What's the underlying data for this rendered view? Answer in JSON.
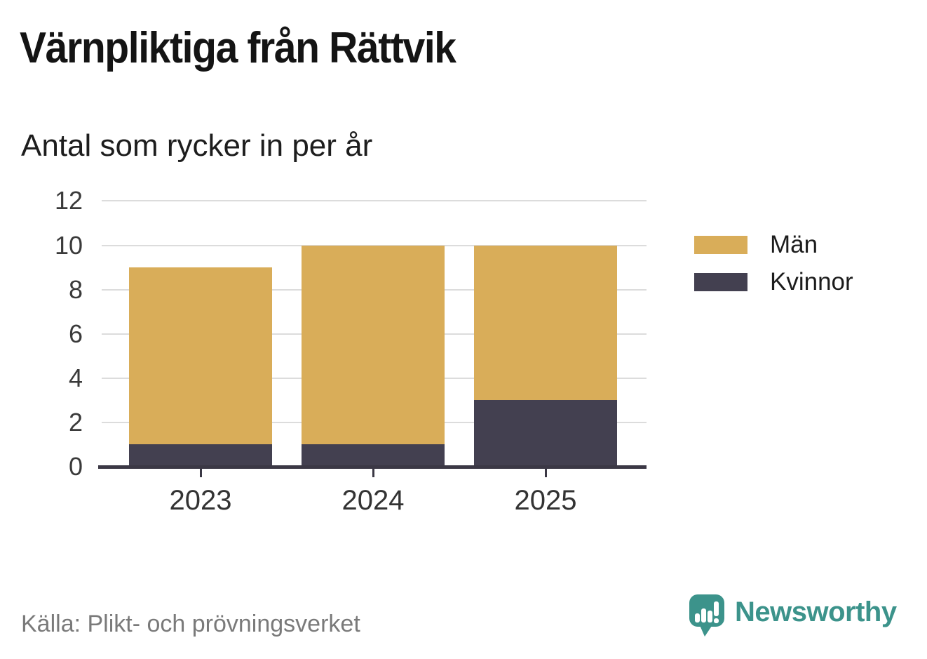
{
  "header": {
    "title": "Värnpliktiga från Rättvik",
    "subtitle": "Antal som rycker in per år"
  },
  "chart_data": {
    "type": "bar",
    "stacked": true,
    "title": "Värnpliktiga från Rättvik",
    "subtitle": "Antal som rycker in per år",
    "categories": [
      "2023",
      "2024",
      "2025"
    ],
    "series": [
      {
        "name": "Kvinnor",
        "color": "#434050",
        "values": [
          1,
          1,
          3
        ]
      },
      {
        "name": "Män",
        "color": "#D9AD59",
        "values": [
          8,
          9,
          7
        ]
      }
    ],
    "totals": [
      9,
      10,
      10
    ],
    "xlabel": "",
    "ylabel": "",
    "ylim": [
      0,
      12
    ],
    "yticks": [
      0,
      2,
      4,
      6,
      8,
      10,
      12
    ],
    "grid": true,
    "legend_position": "right"
  },
  "legend": {
    "items": [
      {
        "label": "Män",
        "color": "#D9AD59"
      },
      {
        "label": "Kvinnor",
        "color": "#434050"
      }
    ]
  },
  "footer": {
    "source": "Källa: Plikt- och prövningsverket",
    "brand": "Newsworthy"
  },
  "colors": {
    "men": "#D9AD59",
    "women": "#434050",
    "grid": "#DCDCDC",
    "axis": "#3B3845",
    "brand_teal": "#3C938B",
    "source_gray": "#7A7A7A"
  }
}
